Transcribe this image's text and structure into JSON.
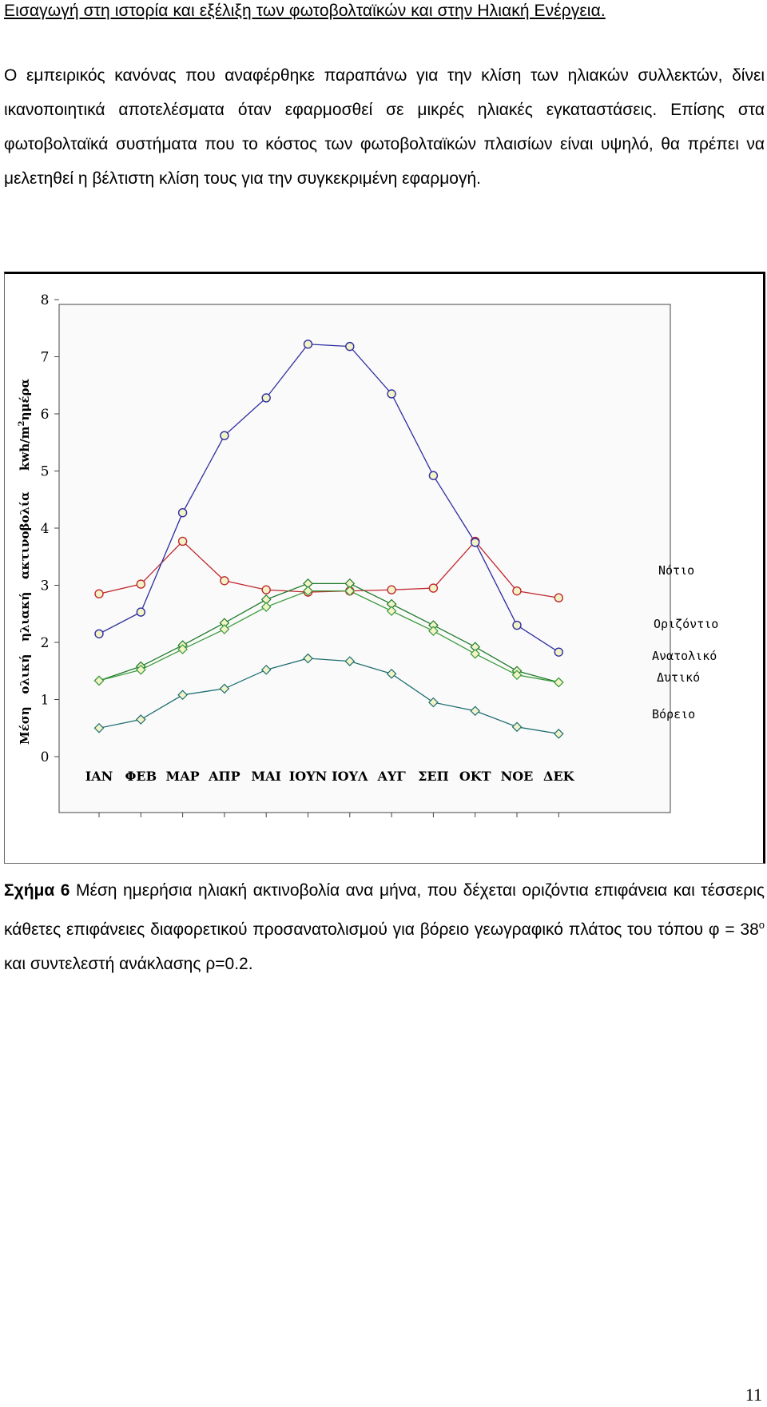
{
  "header": {
    "title": "Εισαγωγή  στη  ιστορία και εξέλιξη  των φωτοβολταϊκών  και  στην  Ηλιακή  Ενέργεια."
  },
  "paragraph": {
    "text": "Ο εμπειρικός κανόνας που αναφέρθηκε παραπάνω για την κλίση των ηλιακών συλλεκτών, δίνει ικανοποιητικά αποτελέσματα όταν εφαρμοσθεί σε μικρές ηλιακές εγκαταστάσεις. Επίσης στα φωτοβολταϊκά συστήματα που το κόστος των φωτοβολταϊκών πλαισίων είναι υψηλό, θα πρέπει να μελετηθεί η βέλτιστη κλίση τους για την συγκεκριμένη εφαρμογή."
  },
  "chart_data": {
    "type": "line",
    "categories": [
      "ΙΑΝ",
      "ΦΕΒ",
      "ΜΑΡ",
      "ΑΠΡ",
      "ΜΑΙ",
      "ΙΟΥΝ",
      "ΙΟΥΛ",
      "ΑΥΓ",
      "ΣΕΠ",
      "ΟΚΤ",
      "ΝΟΕ",
      "ΔΕΚ"
    ],
    "ylabel_parts": {
      "before": "Μέση   ολική   ηλιακή   ακτινοβολία     kwh/m",
      "sup": "2",
      "after": "ημέρα"
    },
    "ylim": [
      0,
      8
    ],
    "yticks": [
      "0",
      "1",
      "2",
      "3",
      "4",
      "5",
      "6",
      "7",
      "8"
    ],
    "grid": false,
    "legend_placement": "right",
    "series": [
      {
        "name": "Νότιο",
        "color": "#c0282e",
        "marker": "circle",
        "values": [
          2.85,
          3.02,
          3.77,
          3.08,
          2.92,
          2.88,
          2.9,
          2.92,
          2.95,
          3.77,
          2.9,
          2.78
        ]
      },
      {
        "name": "Οριζόντιο",
        "color": "#2e2ea0",
        "marker": "circle",
        "values": [
          2.15,
          2.53,
          4.27,
          5.62,
          6.28,
          7.22,
          7.18,
          6.35,
          4.92,
          3.75,
          2.3,
          1.83
        ]
      },
      {
        "name": "Ανατολικό",
        "color": "#1f7a2a",
        "marker": "diamond",
        "values": [
          1.33,
          1.58,
          1.95,
          2.34,
          2.75,
          3.03,
          3.03,
          2.67,
          2.3,
          1.92,
          1.5,
          1.3
        ]
      },
      {
        "name": "Δυτικό",
        "color": "#3a9a3a",
        "marker": "diamond",
        "values": [
          1.33,
          1.52,
          1.88,
          2.23,
          2.62,
          2.9,
          2.9,
          2.55,
          2.2,
          1.8,
          1.43,
          1.3
        ]
      },
      {
        "name": "Βόρειο",
        "color": "#1e6e70",
        "marker": "diamond",
        "values": [
          0.5,
          0.65,
          1.08,
          1.19,
          1.52,
          1.72,
          1.67,
          1.45,
          0.95,
          0.8,
          0.52,
          0.4
        ]
      }
    ],
    "marker_fill": "#f3f3c8",
    "plot_background": "#fafafa"
  },
  "caption": {
    "label": "Σχήμα 6",
    "text_before": "Μέση ημερήσια ηλιακή ακτινοβολία ανα μήνα, που δέχεται οριζόντια επιφάνεια και τέσσερις κάθετες επιφάνειες διαφορετικού προσανατολισμού για βόρειο γεωγραφικό πλάτος του τόπου φ = 38",
    "sup": "ο",
    "text_after": " και συντελεστή ανάκλασης ρ=0.2."
  },
  "page_number": "11"
}
